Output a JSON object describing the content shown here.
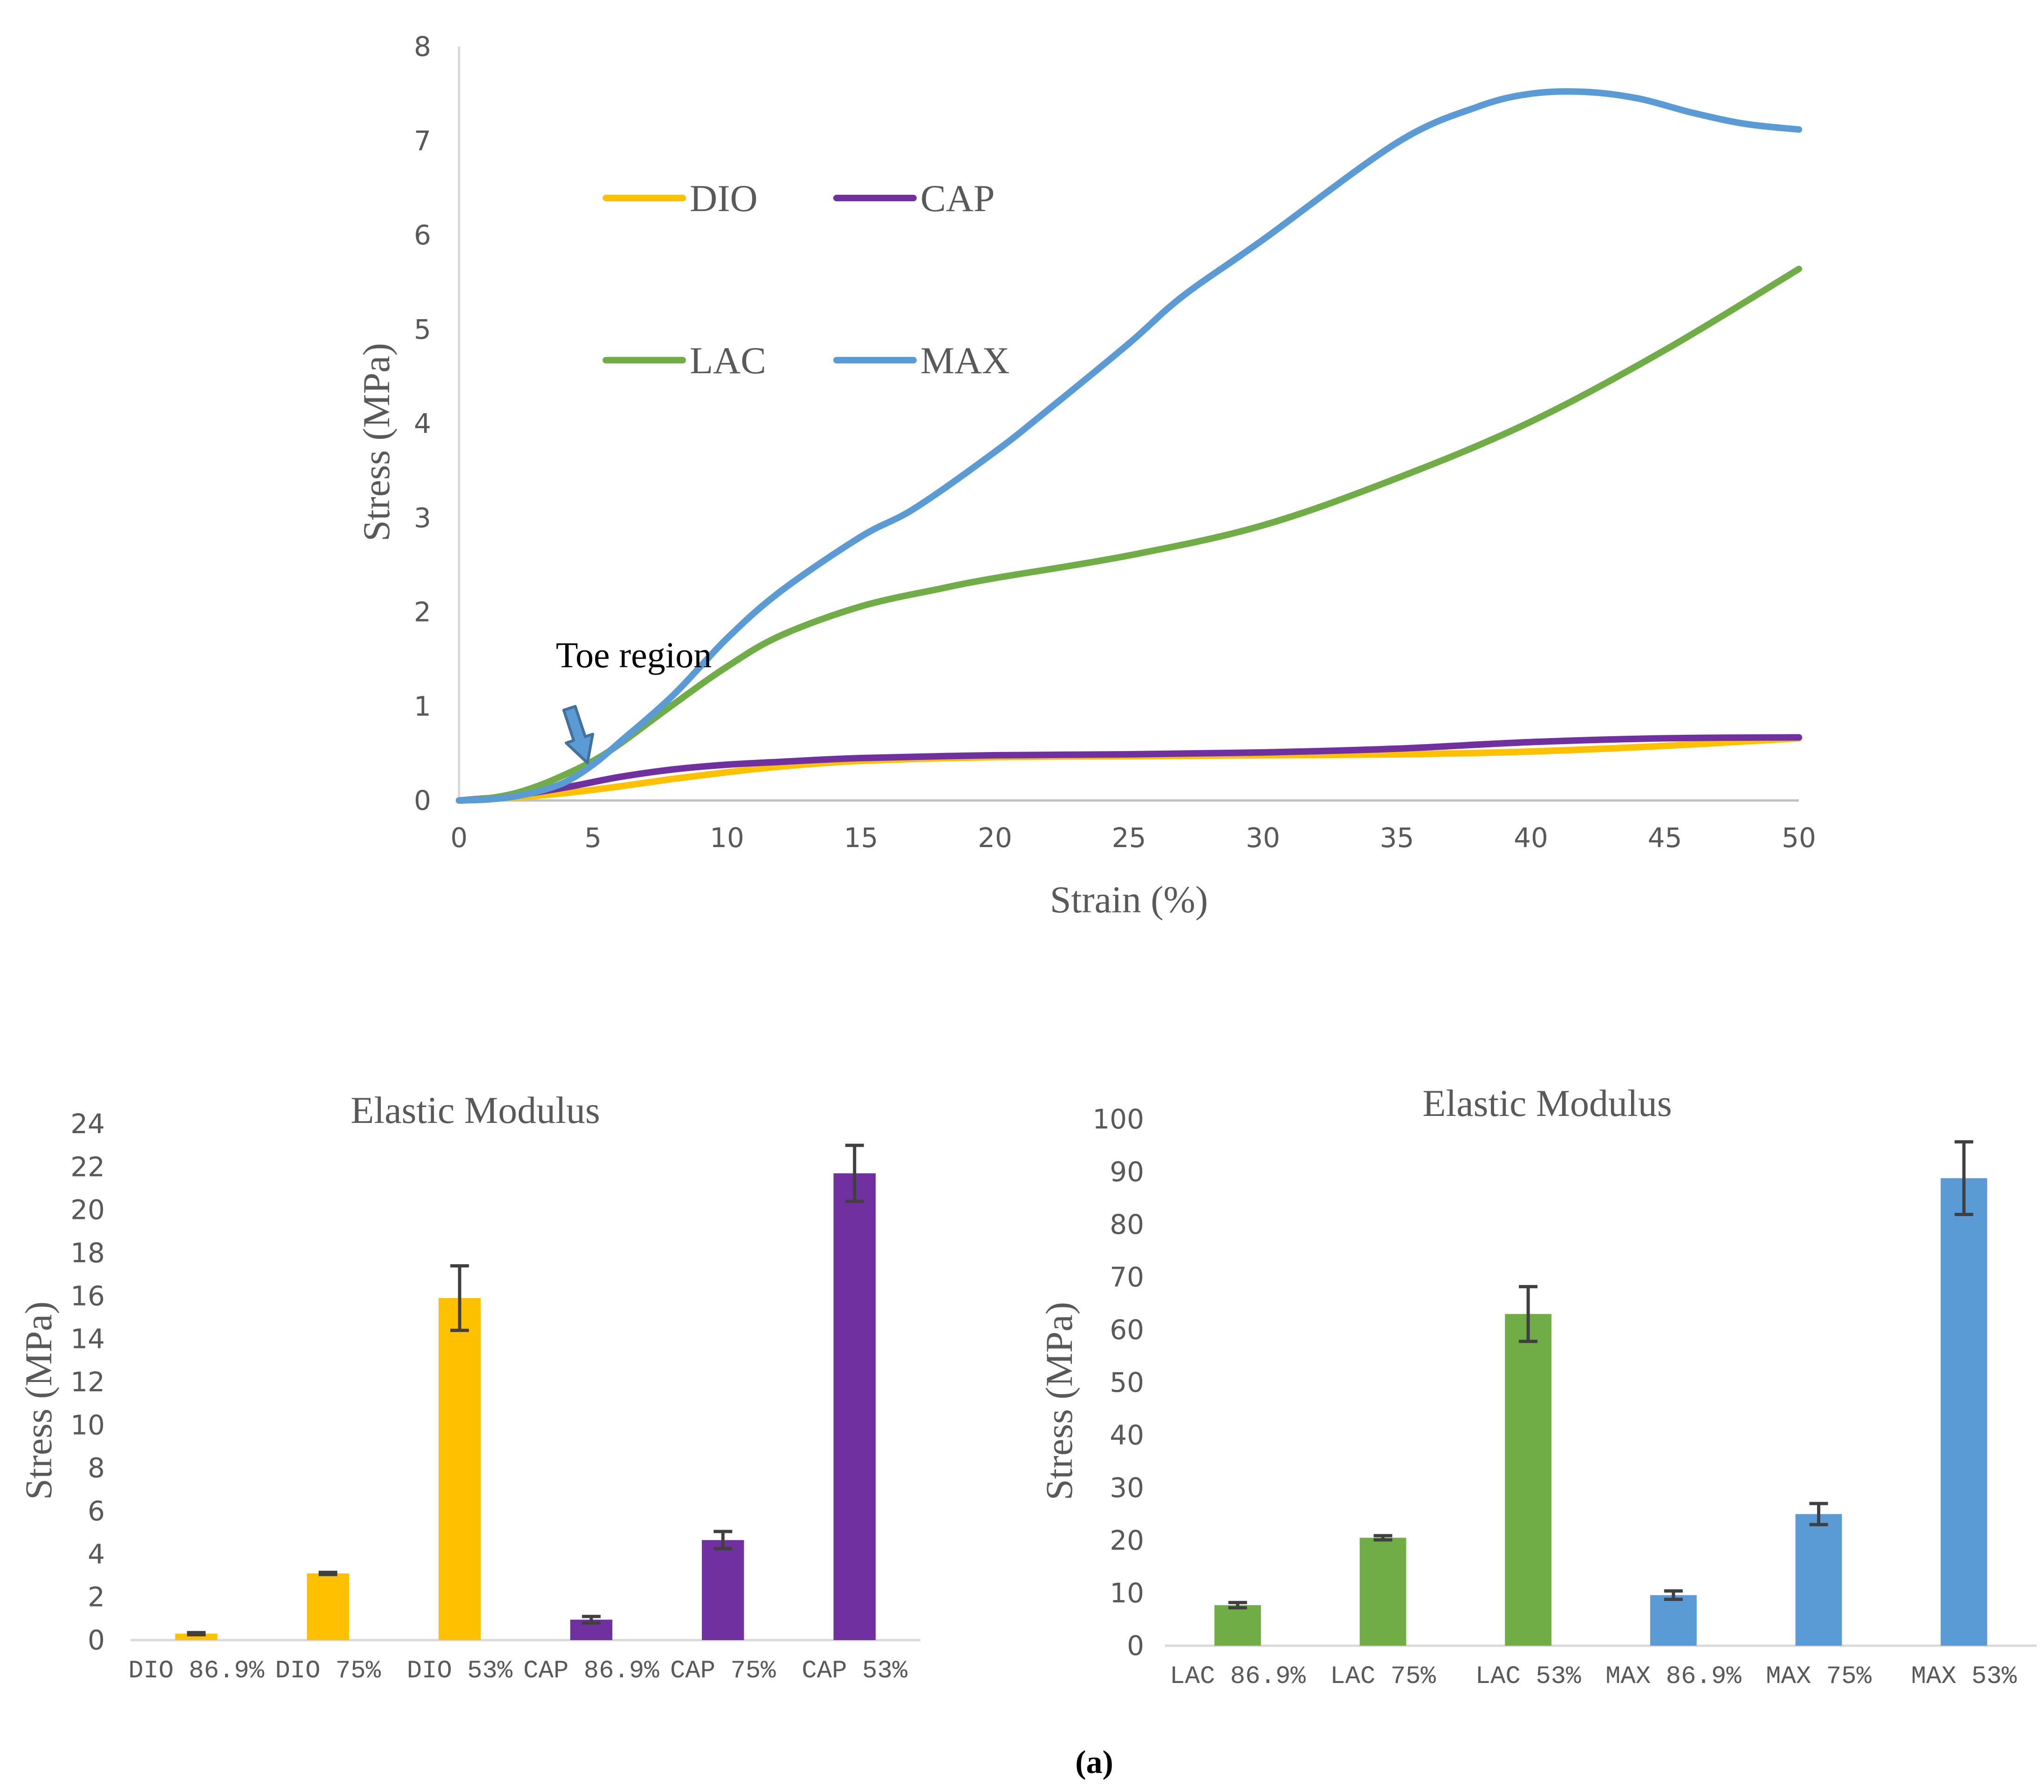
{
  "caption": "(a)",
  "chart_data": [
    {
      "type": "line",
      "xlabel": "Strain (%)",
      "ylabel": "Stress (MPa)",
      "xlim": [
        0,
        50
      ],
      "ylim": [
        0,
        8
      ],
      "xticks": [
        "0",
        "5",
        "10",
        "15",
        "20",
        "25",
        "30",
        "35",
        "40",
        "45",
        "50"
      ],
      "yticks": [
        "0",
        "1",
        "2",
        "3",
        "4",
        "5",
        "6",
        "7",
        "8"
      ],
      "grid": false,
      "legend_position": "upper-left inside plot",
      "annotation": {
        "text": "Toe region",
        "arrow_points_to": [
          5,
          0.3
        ]
      },
      "series": [
        {
          "name": "DIO",
          "color": "#FFC000",
          "x": [
            0,
            2,
            4,
            6,
            8,
            10,
            12,
            15,
            20,
            25,
            30,
            35,
            40,
            45,
            50
          ],
          "y": [
            0,
            0.03,
            0.08,
            0.15,
            0.23,
            0.3,
            0.36,
            0.42,
            0.46,
            0.47,
            0.48,
            0.49,
            0.52,
            0.58,
            0.66
          ]
        },
        {
          "name": "CAP",
          "color": "#7030A0",
          "x": [
            0,
            2,
            4,
            6,
            8,
            10,
            12,
            15,
            20,
            25,
            30,
            35,
            40,
            45,
            50
          ],
          "y": [
            0,
            0.05,
            0.14,
            0.25,
            0.33,
            0.38,
            0.41,
            0.45,
            0.48,
            0.49,
            0.51,
            0.55,
            0.62,
            0.66,
            0.67
          ]
        },
        {
          "name": "LAC",
          "color": "#70AD47",
          "x": [
            0,
            1,
            2,
            3,
            4,
            5,
            6,
            8,
            10,
            12,
            15,
            18,
            20,
            25,
            30,
            35,
            40,
            45,
            50
          ],
          "y": [
            0,
            0.02,
            0.07,
            0.16,
            0.28,
            0.42,
            0.6,
            1.02,
            1.42,
            1.75,
            2.06,
            2.25,
            2.36,
            2.6,
            2.92,
            3.42,
            4.02,
            4.78,
            5.64
          ]
        },
        {
          "name": "MAX",
          "color": "#5B9BD5",
          "x": [
            0,
            1,
            2,
            3,
            4,
            5,
            6,
            8,
            10,
            12,
            15,
            17,
            20,
            22,
            25,
            27,
            30,
            35,
            38,
            40,
            42,
            44,
            46,
            48,
            50
          ],
          "y": [
            0,
            0.01,
            0.04,
            0.1,
            0.2,
            0.38,
            0.62,
            1.12,
            1.72,
            2.22,
            2.8,
            3.1,
            3.7,
            4.15,
            4.85,
            5.35,
            5.95,
            6.98,
            7.36,
            7.5,
            7.52,
            7.45,
            7.3,
            7.18,
            7.12
          ]
        }
      ]
    },
    {
      "type": "bar",
      "title": "Elastic Modulus",
      "ylabel": "Stress (MPa)",
      "ylim": [
        0,
        24
      ],
      "yticks": [
        "0",
        "2",
        "4",
        "6",
        "8",
        "10",
        "12",
        "14",
        "16",
        "18",
        "20",
        "22",
        "24"
      ],
      "categories": [
        "DIO 86.9%",
        "DIO 75%",
        "DIO 53%",
        "CAP 86.9%",
        "CAP 75%",
        "CAP 53%"
      ],
      "values": [
        0.3,
        3.1,
        15.9,
        0.95,
        4.65,
        21.7
      ],
      "errors": [
        0.05,
        0.05,
        1.5,
        0.15,
        0.4,
        1.3
      ],
      "colors": [
        "#FFC000",
        "#FFC000",
        "#FFC000",
        "#7030A0",
        "#7030A0",
        "#7030A0"
      ],
      "grid": false
    },
    {
      "type": "bar",
      "title": "Elastic Modulus",
      "ylabel": "Stress (MPa)",
      "ylim": [
        0,
        100
      ],
      "yticks": [
        "0",
        "10",
        "20",
        "30",
        "40",
        "50",
        "60",
        "70",
        "80",
        "90",
        "100"
      ],
      "categories": [
        "LAC 86.9%",
        "LAC 75%",
        "LAC 53%",
        "MAX 86.9%",
        "MAX 75%",
        "MAX 53%"
      ],
      "values": [
        7.7,
        20.5,
        63,
        9.6,
        25,
        88.8
      ],
      "errors": [
        0.5,
        0.4,
        5.2,
        0.8,
        2.0,
        6.9
      ],
      "colors": [
        "#70AD47",
        "#70AD47",
        "#70AD47",
        "#5B9BD5",
        "#5B9BD5",
        "#5B9BD5"
      ],
      "grid": false
    }
  ]
}
